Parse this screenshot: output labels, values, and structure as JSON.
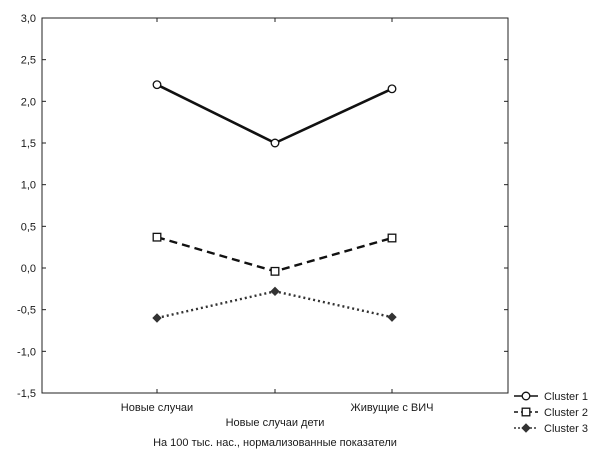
{
  "chart_data": {
    "type": "line",
    "categories": [
      "Новые случаи",
      "Новые случаи дети",
      "Живущие с ВИЧ"
    ],
    "xlabel": "На 100 тыс. нас., нормализованные показатели",
    "ylabel": "",
    "ylim": [
      -1.5,
      3.0
    ],
    "yticks": [
      "-1,5",
      "-1,0",
      "-0,5",
      "0,0",
      "0,5",
      "1,0",
      "1,5",
      "2,0",
      "2,5",
      "3,0"
    ],
    "grid": false,
    "legend_position": "bottom-right",
    "series": [
      {
        "name": "Cluster 1",
        "values": [
          2.2,
          1.5,
          2.15
        ],
        "line": "solid",
        "marker": "circle",
        "color": "#111111"
      },
      {
        "name": "Cluster 2",
        "values": [
          0.37,
          -0.04,
          0.36
        ],
        "line": "dashed",
        "marker": "square",
        "color": "#111111"
      },
      {
        "name": "Cluster 3",
        "values": [
          -0.6,
          -0.28,
          -0.59
        ],
        "line": "dotted",
        "marker": "diamond",
        "color": "#333333"
      }
    ]
  }
}
